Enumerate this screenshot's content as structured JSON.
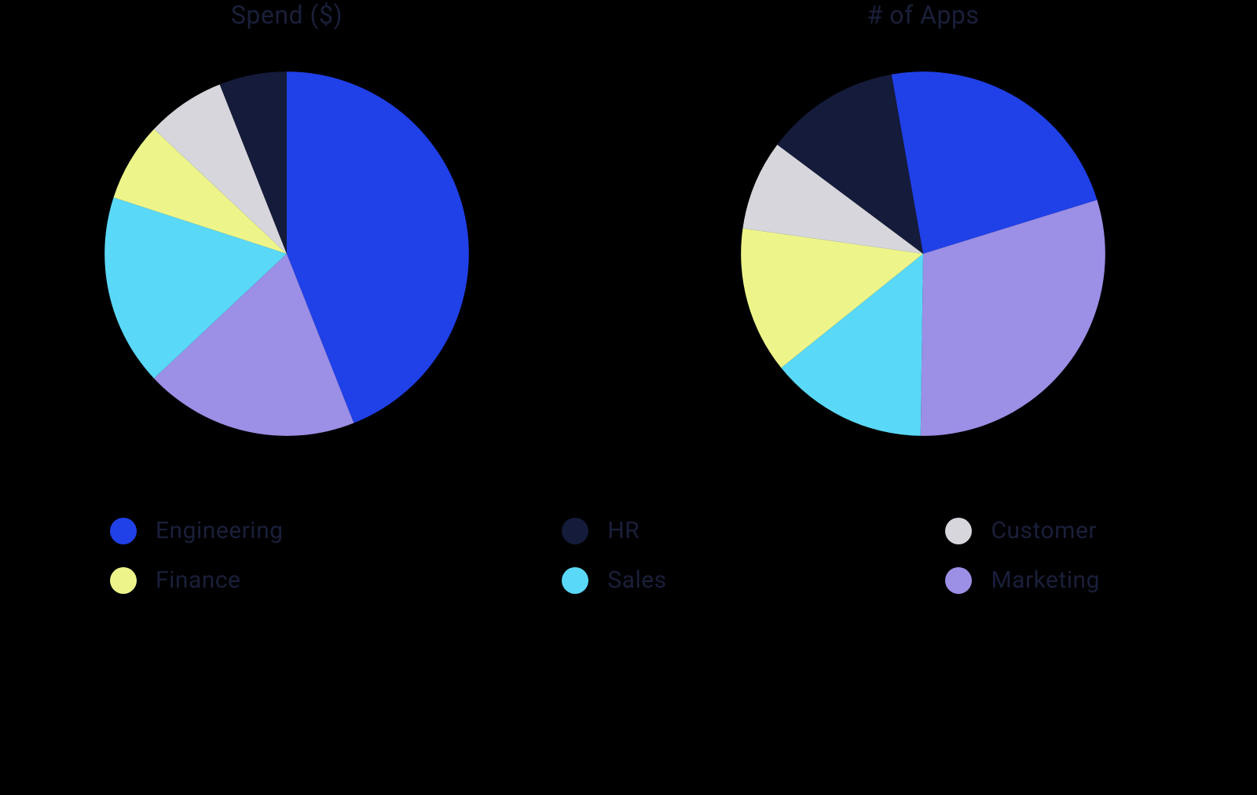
{
  "background_color": "#000000",
  "text_color": "#1a1f3a",
  "title_fontsize": 32,
  "legend_fontsize": 30,
  "chart_diameter": 510,
  "charts": [
    {
      "title": "Spend ($)",
      "type": "pie",
      "start_angle_deg": 0,
      "slices": [
        {
          "label": "Engineering",
          "value": 44,
          "color": "#2040e8"
        },
        {
          "label": "Marketing",
          "value": 19,
          "color": "#9b8fe6"
        },
        {
          "label": "Sales",
          "value": 17,
          "color": "#5ad8f7"
        },
        {
          "label": "Finance",
          "value": 7,
          "color": "#edf58a"
        },
        {
          "label": "Customer",
          "value": 7,
          "color": "#d6d6dc"
        },
        {
          "label": "HR",
          "value": 6,
          "color": "#151b3a"
        }
      ]
    },
    {
      "title": "# of Apps",
      "type": "pie",
      "start_angle_deg": -10,
      "slices": [
        {
          "label": "Engineering",
          "value": 23,
          "color": "#2040e8"
        },
        {
          "label": "Marketing",
          "value": 30,
          "color": "#9b8fe6"
        },
        {
          "label": "Sales",
          "value": 14,
          "color": "#5ad8f7"
        },
        {
          "label": "Finance",
          "value": 13,
          "color": "#edf58a"
        },
        {
          "label": "Customer",
          "value": 8,
          "color": "#d6d6dc"
        },
        {
          "label": "HR",
          "value": 12,
          "color": "#151b3a"
        }
      ]
    }
  ],
  "legend": [
    {
      "label": "Engineering",
      "color": "#2040e8"
    },
    {
      "label": "Finance",
      "color": "#edf58a"
    },
    {
      "label": "HR",
      "color": "#151b3a"
    },
    {
      "label": "Sales",
      "color": "#5ad8f7"
    },
    {
      "label": "Customer",
      "color": "#d6d6dc"
    },
    {
      "label": "Marketing",
      "color": "#9b8fe6"
    }
  ],
  "legend_columns": 3
}
